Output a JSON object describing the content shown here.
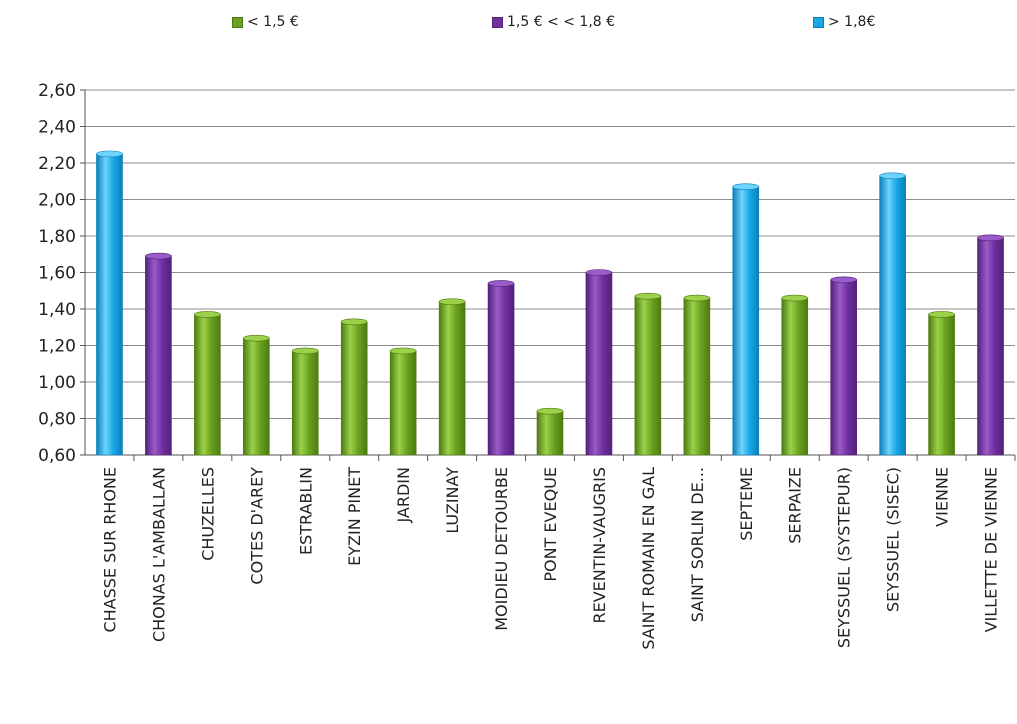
{
  "chart_data": {
    "type": "bar",
    "title": "",
    "xlabel": "",
    "ylabel": "",
    "ylim": [
      0.6,
      2.6
    ],
    "yticks": [
      "0,60",
      "0,80",
      "1,00",
      "1,20",
      "1,40",
      "1,60",
      "1,80",
      "2,00",
      "2,20",
      "2,40",
      "2,60"
    ],
    "grid": true,
    "legend_position": "top",
    "legend": [
      {
        "label": "< 1,5 €",
        "color": "#6aa21f"
      },
      {
        "label": "1,5 € < < 1,8 €",
        "color": "#7030a0"
      },
      {
        "label": "> 1,8€",
        "color": "#18a8e8"
      }
    ],
    "categories": [
      "CHASSE SUR RHONE",
      "CHONAS L'AMBALLAN",
      "CHUZELLES",
      "COTES D'AREY",
      "ESTRABLIN",
      "EYZIN PINET",
      "JARDIN",
      "LUZINAY",
      "MOIDIEU DETOURBE",
      "PONT EVEQUE",
      "REVENTIN-VAUGRIS",
      "SAINT ROMAIN EN GAL",
      "SAINT SORLIN DE...",
      "SEPTEME",
      "SERPAIZE",
      "SEYSSUEL (SYSTEPUR)",
      "SEYSSUEL (SISEC)",
      "VIENNE",
      "VILLETTE DE VIENNE"
    ],
    "values": [
      2.25,
      1.69,
      1.37,
      1.24,
      1.17,
      1.33,
      1.17,
      1.44,
      1.54,
      0.84,
      1.6,
      1.47,
      1.46,
      2.07,
      1.46,
      1.56,
      2.13,
      1.37,
      1.79
    ],
    "value_groups": [
      2,
      1,
      0,
      0,
      0,
      0,
      0,
      0,
      1,
      0,
      1,
      0,
      0,
      2,
      0,
      1,
      2,
      0,
      1
    ],
    "group_palette": [
      {
        "base": "#6aa21f",
        "light": "#9bd24a",
        "dark": "#4d7a12"
      },
      {
        "base": "#7030a0",
        "light": "#9a5cc8",
        "dark": "#52207a"
      },
      {
        "base": "#18a8e8",
        "light": "#6fd3ff",
        "dark": "#0b7fb8"
      }
    ]
  }
}
